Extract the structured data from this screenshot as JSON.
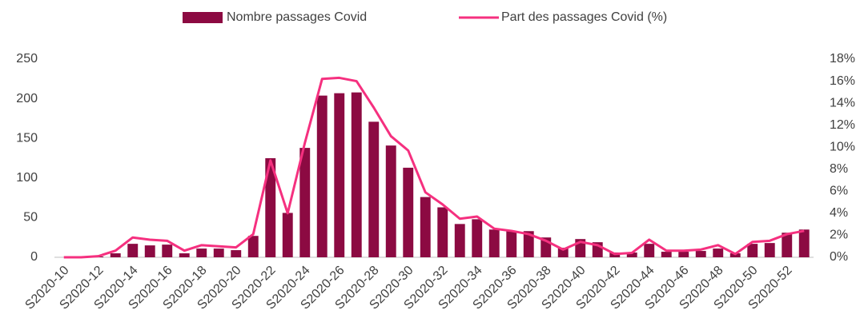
{
  "chart_data": {
    "type": "combo",
    "categories": [
      "S2020-10",
      null,
      "S2020-12",
      null,
      "S2020-14",
      null,
      "S2020-16",
      null,
      "S2020-18",
      null,
      "S2020-20",
      null,
      "S2020-22",
      null,
      "S2020-24",
      null,
      "S2020-26",
      null,
      "S2020-28",
      null,
      "S2020-30",
      null,
      "S2020-32",
      null,
      "S2020-34",
      null,
      "S2020-36",
      null,
      "S2020-38",
      null,
      "S2020-40",
      null,
      "S2020-42",
      null,
      "S2020-44",
      null,
      "S2020-46",
      null,
      "S2020-48",
      null,
      "S2020-50",
      null,
      "S2020-52",
      null
    ],
    "series": [
      {
        "name": "Nombre passages Covid",
        "type": "bar",
        "color": "#8c0a42",
        "values": [
          0,
          0,
          1,
          5,
          17,
          15,
          16,
          5,
          11,
          11,
          9,
          27,
          125,
          56,
          138,
          204,
          207,
          208,
          171,
          141,
          113,
          76,
          63,
          42,
          48,
          35,
          33,
          33,
          25,
          12,
          23,
          19,
          6,
          6,
          17,
          7,
          7,
          8,
          11,
          5,
          17,
          18,
          31,
          35
        ]
      },
      {
        "name": "Part des passages Covid (%)",
        "type": "line",
        "axis": "y2",
        "color": "#f5307f",
        "values": [
          0,
          0,
          0.1,
          0.6,
          1.8,
          1.6,
          1.5,
          0.6,
          1.1,
          1.0,
          0.9,
          2.1,
          8.8,
          4.0,
          10.4,
          16.2,
          16.3,
          16.0,
          13.6,
          11.0,
          9.7,
          5.9,
          4.8,
          3.5,
          3.7,
          2.6,
          2.4,
          2.1,
          1.5,
          0.7,
          1.4,
          1.1,
          0.3,
          0.4,
          1.6,
          0.6,
          0.6,
          0.7,
          1.1,
          0.3,
          1.4,
          1.5,
          2.1,
          2.4
        ]
      }
    ],
    "ylim": [
      0,
      250
    ],
    "yticks": [
      0,
      50,
      100,
      150,
      200,
      250
    ],
    "y2lim": [
      0,
      18
    ],
    "y2ticks": [
      {
        "value": 0,
        "label": "0%"
      },
      {
        "value": 2,
        "label": "2%"
      },
      {
        "value": 4,
        "label": "4%"
      },
      {
        "value": 6,
        "label": "6%"
      },
      {
        "value": 8,
        "label": "8%"
      },
      {
        "value": 10,
        "label": "10%"
      },
      {
        "value": 12,
        "label": "12%"
      },
      {
        "value": 14,
        "label": "14%"
      },
      {
        "value": 16,
        "label": "16%"
      },
      {
        "value": 18,
        "label": "18%"
      }
    ],
    "grid": false,
    "legend": "top"
  }
}
